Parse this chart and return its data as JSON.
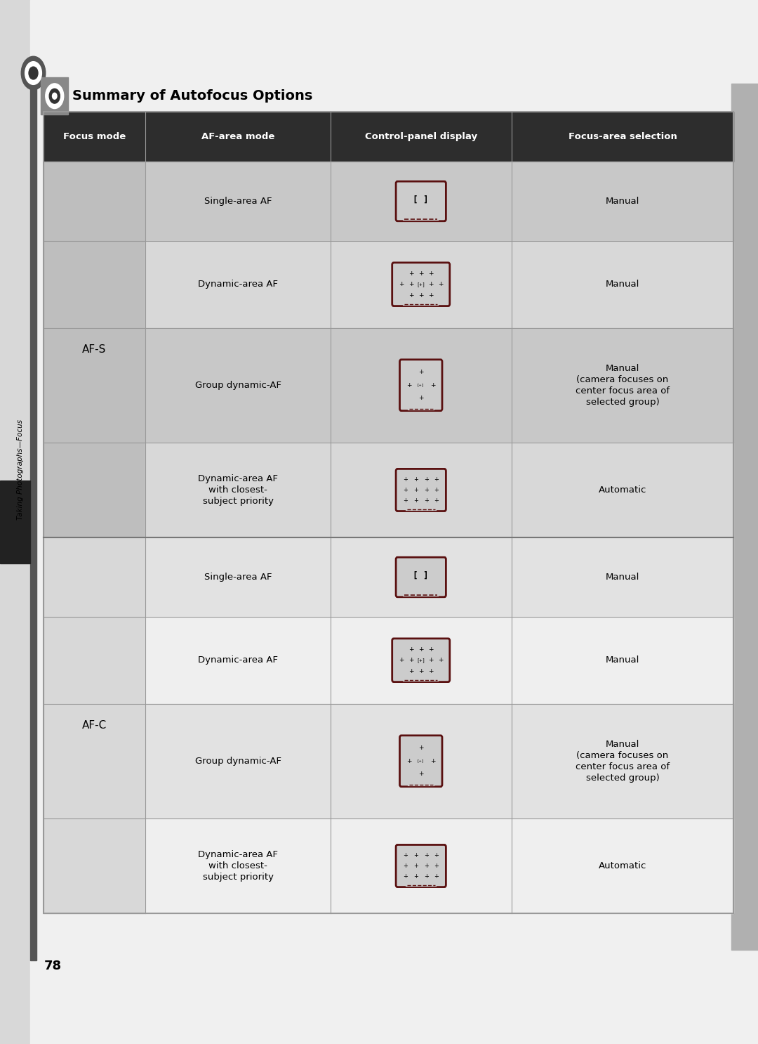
{
  "title": "Summary of Autofocus Options",
  "page_number": "78",
  "sidebar_text": "Taking Photographs—Focus",
  "page_bg": "#d8d8d8",
  "white_bg": "#ffffff",
  "header_bg": "#2d2d2d",
  "header_text_color": "#ffffff",
  "col_headers": [
    "Focus mode",
    "AF-area mode",
    "Control-panel display",
    "Focus-area selection"
  ],
  "afs_rows": [
    {
      "af_area": "Single-area AF",
      "icon_type": "single",
      "focus_sel": "Manual"
    },
    {
      "af_area": "Dynamic-area AF",
      "icon_type": "dynamic",
      "focus_sel": "Manual"
    },
    {
      "af_area": "Group dynamic-AF",
      "icon_type": "group",
      "focus_sel": "Manual\n(camera focuses on\ncenter focus area of\nselected group)"
    },
    {
      "af_area": "Dynamic-area AF\nwith closest-\nsubject priority",
      "icon_type": "closest",
      "focus_sel": "Automatic"
    }
  ],
  "afc_rows": [
    {
      "af_area": "Single-area AF",
      "icon_type": "single",
      "focus_sel": "Manual"
    },
    {
      "af_area": "Dynamic-area AF",
      "icon_type": "dynamic",
      "focus_sel": "Manual"
    },
    {
      "af_area": "Group dynamic-AF",
      "icon_type": "group",
      "focus_sel": "Manual\n(camera focuses on\ncenter focus area of\nselected group)"
    },
    {
      "af_area": "Dynamic-area AF\nwith closest-\nsubject priority",
      "icon_type": "closest",
      "focus_sel": "Automatic"
    }
  ],
  "afs_row_bg_dark": "#c8c8c8",
  "afs_row_bg_light": "#d8d8d8",
  "afs_col0_bg": "#bebebe",
  "afc_row_bg_dark": "#e2e2e2",
  "afc_row_bg_light": "#efefef",
  "afc_col0_bg": "#d8d8d8",
  "grid_color": "#aaaaaa",
  "icon_border_color": "#5a1010"
}
